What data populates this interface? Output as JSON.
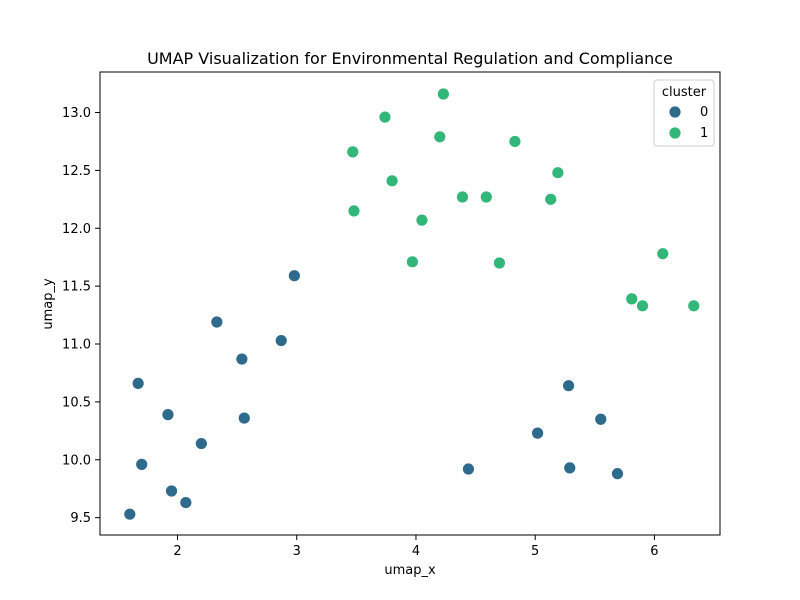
{
  "chart_data": {
    "type": "scatter",
    "title": "UMAP Visualization for Environmental Regulation and Compliance",
    "xlabel": "umap_x",
    "ylabel": "umap_y",
    "xlim": [
      1.35,
      6.55
    ],
    "ylim": [
      9.35,
      13.35
    ],
    "xticks": [
      2,
      3,
      4,
      5,
      6
    ],
    "yticks": [
      9.5,
      10.0,
      10.5,
      11.0,
      11.5,
      12.0,
      12.5,
      13.0
    ],
    "xtick_labels": [
      "2",
      "3",
      "4",
      "5",
      "6"
    ],
    "ytick_labels": [
      "9.5",
      "10.0",
      "10.5",
      "11.0",
      "11.5",
      "12.0",
      "12.5",
      "13.0"
    ],
    "grid": false,
    "legend": {
      "title": "cluster",
      "placement": "top-right",
      "entries": [
        {
          "label": "0",
          "color": "#2e6a8c"
        },
        {
          "label": "1",
          "color": "#33b778"
        }
      ]
    },
    "series": [
      {
        "name": "0",
        "color": "#2e6a8c",
        "points": [
          [
            1.6,
            9.53
          ],
          [
            1.67,
            10.66
          ],
          [
            1.7,
            9.96
          ],
          [
            1.92,
            10.39
          ],
          [
            1.95,
            9.73
          ],
          [
            2.07,
            9.63
          ],
          [
            2.2,
            10.14
          ],
          [
            2.33,
            11.19
          ],
          [
            2.54,
            10.87
          ],
          [
            2.56,
            10.36
          ],
          [
            2.87,
            11.03
          ],
          [
            2.98,
            11.59
          ],
          [
            4.44,
            9.92
          ],
          [
            5.02,
            10.23
          ],
          [
            5.28,
            10.64
          ],
          [
            5.29,
            9.93
          ],
          [
            5.55,
            10.35
          ],
          [
            5.69,
            9.88
          ]
        ]
      },
      {
        "name": "1",
        "color": "#33b778",
        "points": [
          [
            3.47,
            12.66
          ],
          [
            3.48,
            12.15
          ],
          [
            3.74,
            12.96
          ],
          [
            3.8,
            12.41
          ],
          [
            3.97,
            11.71
          ],
          [
            4.05,
            12.07
          ],
          [
            4.2,
            12.79
          ],
          [
            4.23,
            13.16
          ],
          [
            4.39,
            12.27
          ],
          [
            4.59,
            12.27
          ],
          [
            4.7,
            11.7
          ],
          [
            4.83,
            12.75
          ],
          [
            5.13,
            12.25
          ],
          [
            5.19,
            12.48
          ],
          [
            5.81,
            11.39
          ],
          [
            5.9,
            11.33
          ],
          [
            6.07,
            11.78
          ],
          [
            6.33,
            11.33
          ]
        ]
      }
    ]
  }
}
